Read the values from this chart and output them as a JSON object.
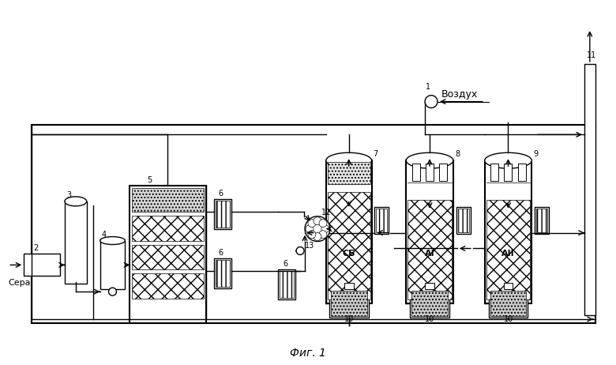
{
  "title": "Фиг. 1",
  "bg_color": "#ffffff",
  "line_color": "#000000",
  "text_color": "#000000",
  "label_vozduh": "Воздух",
  "label_sera": "Сера",
  "fig_width": 7.8,
  "fig_height": 4.62,
  "dpi": 100
}
